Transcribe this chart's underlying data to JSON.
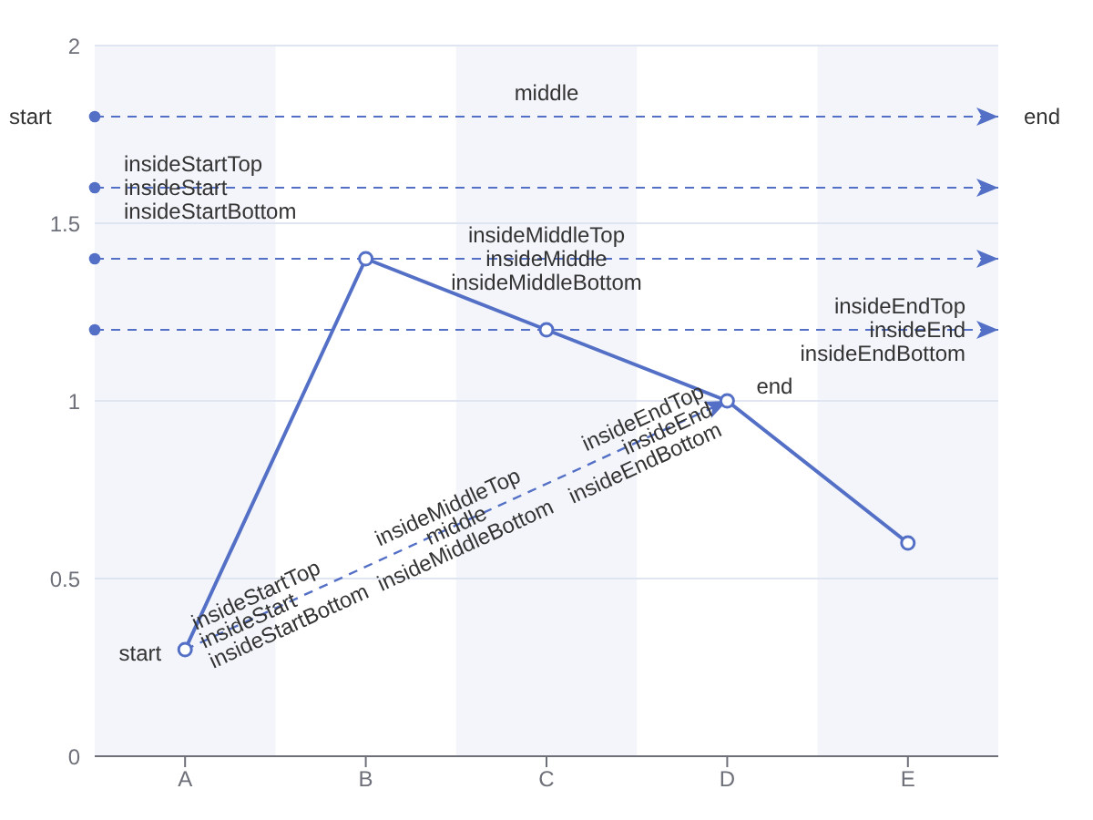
{
  "chart_data": {
    "type": "line",
    "categories": [
      "A",
      "B",
      "C",
      "D",
      "E"
    ],
    "series": [
      {
        "type": "line",
        "color": "#5470c6",
        "values": [
          0.3,
          1.4,
          1.2,
          1.0,
          0.6
        ],
        "marker": "circle",
        "line_style": "solid"
      },
      {
        "type": "line",
        "color": "#5470c6",
        "values": [
          0.3,
          null,
          null,
          1.0,
          null
        ],
        "marker": "none",
        "line_style": "dashed"
      }
    ],
    "ylim": [
      0,
      2
    ],
    "yticks": [
      0,
      0.5,
      1,
      1.5,
      2
    ],
    "grid": "y",
    "legend": false,
    "bands": [
      {
        "axis": "x",
        "from": "A",
        "to": "A",
        "color": "#f3f5fa"
      },
      {
        "axis": "x",
        "from": "C",
        "to": "C",
        "color": "#f3f5fa"
      },
      {
        "axis": "x",
        "from": "E",
        "to": "E",
        "color": "#f3f5fa"
      }
    ],
    "ref_lines": [
      {
        "axis": "y",
        "value": 1.8,
        "label": "middle",
        "color": "#5470c6",
        "line_style": "dashed"
      },
      {
        "axis": "y",
        "value": 1.6,
        "label": "insideStart",
        "color": "#5470c6",
        "line_style": "dashed"
      },
      {
        "axis": "y",
        "value": 1.4,
        "label": "insideMiddle",
        "color": "#5470c6",
        "line_style": "dashed"
      },
      {
        "axis": "y",
        "value": 1.2,
        "label": "insideEnd",
        "color": "#5470c6",
        "line_style": "dashed"
      }
    ],
    "annotations": [
      "start",
      "end",
      "insideStartTop",
      "insideStartBottom",
      "insideMiddleTop",
      "insideMiddleBottom",
      "insideEndTop",
      "insideEndBottom",
      "insideStartTop",
      "insideStart",
      "insideStartBottom",
      "insideMiddleTop",
      "middle",
      "insideMiddleBottom",
      "insideEndTop",
      "insideEnd",
      "insideEndBottom",
      {
        "text": "start",
        "x": "A",
        "y": 0.3
      },
      {
        "text": "end",
        "x": "D",
        "y": 1.0
      }
    ]
  }
}
